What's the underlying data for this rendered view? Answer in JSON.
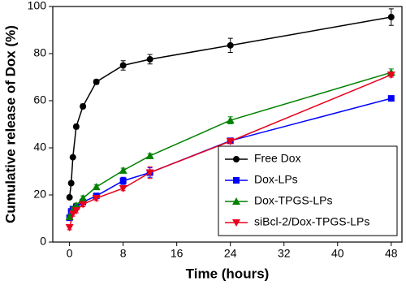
{
  "chart_data": {
    "type": "line",
    "xlabel": "Time (hours)",
    "ylabel": "Cumulative release of Dox (%)",
    "xlim": [
      -2.5,
      49.6
    ],
    "xticks": [
      0,
      8,
      16,
      24,
      32,
      40,
      48
    ],
    "ylim": [
      0,
      100
    ],
    "yticks": [
      0,
      20,
      40,
      60,
      80,
      100
    ],
    "legend": "lower right",
    "series": [
      {
        "name": "Free Dox",
        "color": "#000000",
        "marker": "circle",
        "x": [
          0,
          0.25,
          0.5,
          1,
          2,
          4,
          8,
          12,
          24,
          48
        ],
        "values": [
          19,
          25,
          36,
          49,
          57.6,
          68,
          75,
          77.6,
          83.5,
          95.5
        ],
        "errors": [
          0.5,
          0.5,
          0.5,
          1,
          1,
          1,
          2,
          2,
          3,
          3.5
        ]
      },
      {
        "name": "Dox-LPs",
        "color": "#0000ff",
        "marker": "square",
        "x": [
          0,
          0.25,
          0.5,
          1,
          2,
          4,
          8,
          12,
          24,
          48
        ],
        "values": [
          10.3,
          13,
          14,
          15,
          17,
          19.6,
          26,
          29.5,
          43,
          61
        ],
        "errors": [
          1,
          1,
          1,
          1,
          1,
          1,
          1.5,
          2,
          1,
          0.8
        ]
      },
      {
        "name": "Dox-TPGS-LPs",
        "color": "#008000",
        "marker": "triangle-up",
        "x": [
          0,
          0.5,
          1,
          2,
          4,
          8,
          12,
          24,
          48
        ],
        "values": [
          10.7,
          13.8,
          15.5,
          18.6,
          23.4,
          30.4,
          36.6,
          51.7,
          72
        ],
        "errors": [
          1,
          1,
          1,
          1,
          1,
          1,
          1,
          1.5,
          1.5
        ]
      },
      {
        "name": "siBcl-2/Dox-TPGS-LPs",
        "color": "#e8001c",
        "marker": "triangle-down",
        "x": [
          0,
          0.5,
          1,
          2,
          4,
          8,
          12,
          24,
          48
        ],
        "values": [
          6.2,
          12,
          13.4,
          16,
          18.6,
          22.8,
          29.5,
          42.8,
          71
        ],
        "errors": [
          1,
          1,
          1,
          1,
          1,
          1,
          2.5,
          1,
          1
        ]
      }
    ]
  }
}
